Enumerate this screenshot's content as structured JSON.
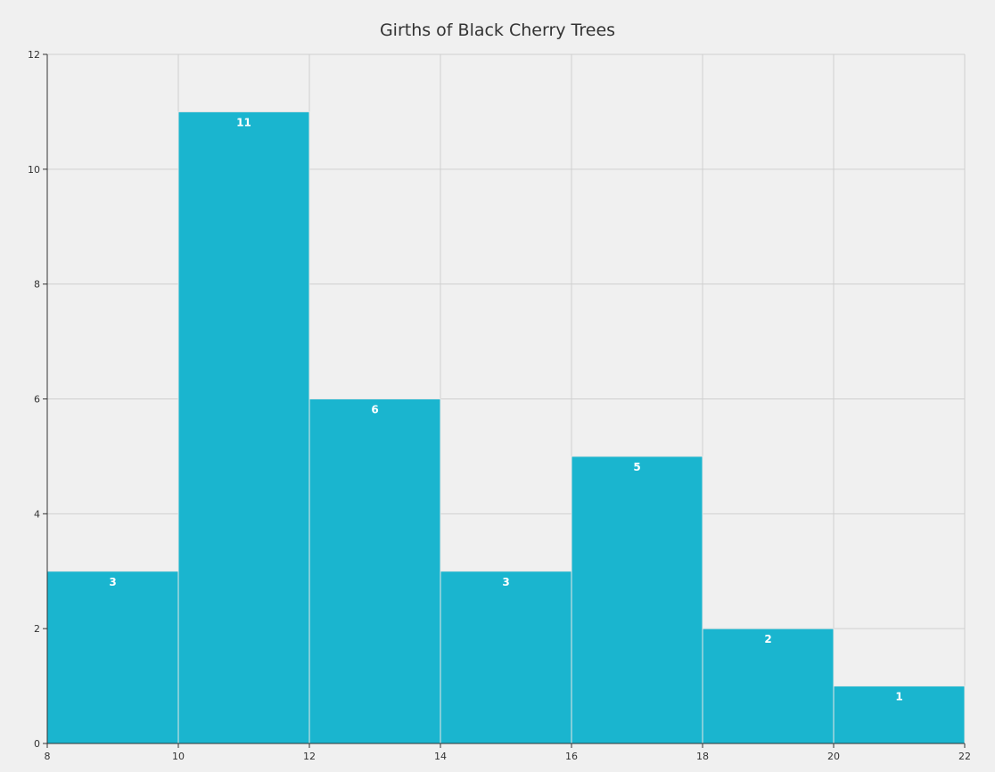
{
  "chart_data": {
    "type": "bar",
    "title": "Girths of Black Cherry Trees",
    "xlabel": "",
    "ylabel": "",
    "bins": [
      {
        "x0": 8,
        "x1": 10,
        "value": 3
      },
      {
        "x0": 10,
        "x1": 12,
        "value": 11
      },
      {
        "x0": 12,
        "x1": 14,
        "value": 6
      },
      {
        "x0": 14,
        "x1": 16,
        "value": 3
      },
      {
        "x0": 16,
        "x1": 18,
        "value": 5
      },
      {
        "x0": 18,
        "x1": 20,
        "value": 2
      },
      {
        "x0": 20,
        "x1": 22,
        "value": 1
      }
    ],
    "xlim": [
      8,
      22
    ],
    "ylim": [
      0,
      12
    ],
    "x_ticks": [
      8,
      10,
      12,
      14,
      16,
      18,
      20,
      22
    ],
    "y_ticks": [
      0,
      2,
      4,
      6,
      8,
      10,
      12
    ],
    "grid": true,
    "bar_color": "#1ab5cf",
    "data_labels": true
  }
}
